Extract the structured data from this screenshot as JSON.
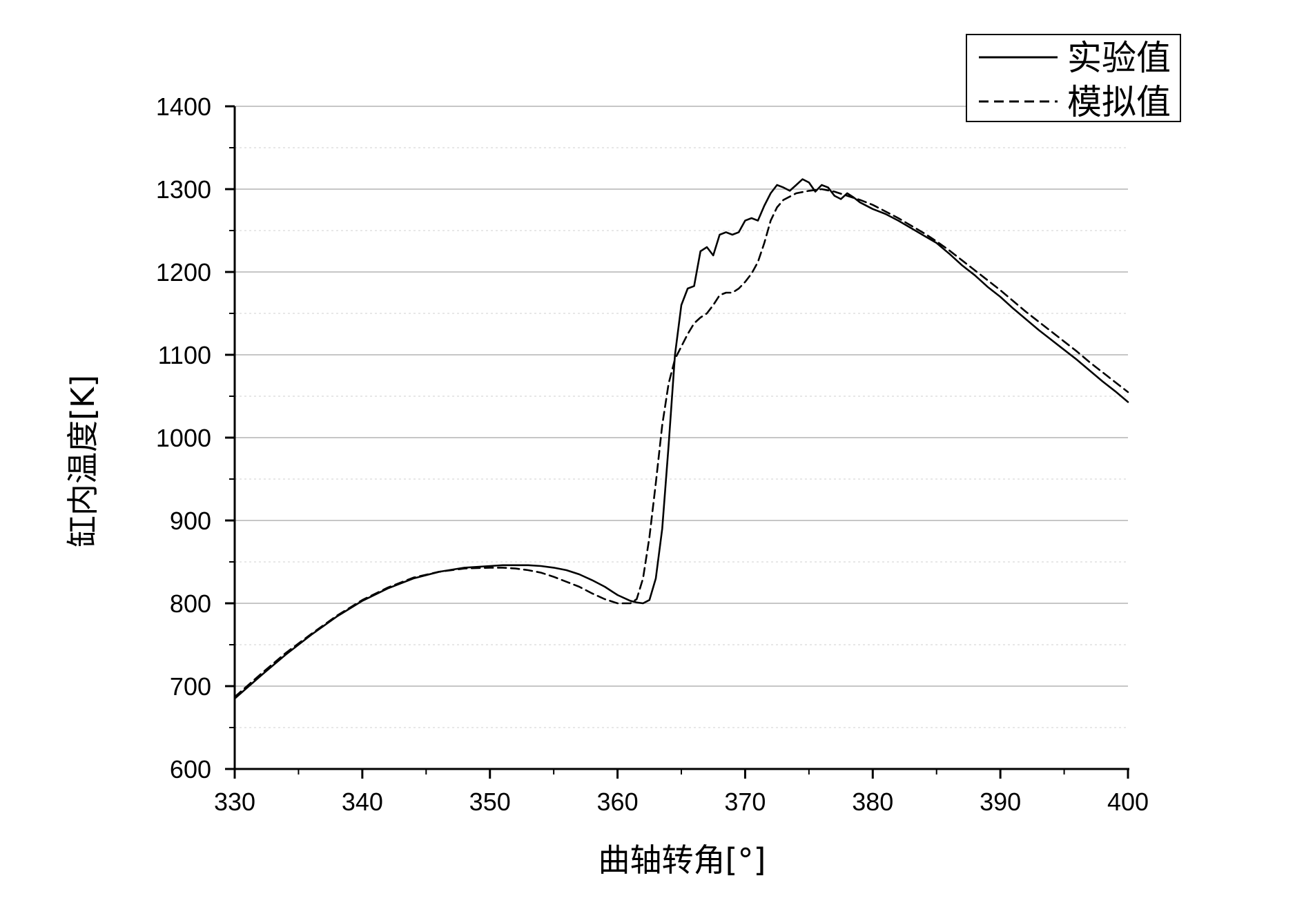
{
  "chart_data": {
    "type": "line",
    "title": "",
    "xlabel": "曲轴转角[°]",
    "ylabel": "缸内温度[K]",
    "xlim": [
      330,
      400
    ],
    "ylim": [
      600,
      1400
    ],
    "xticks": [
      330,
      340,
      350,
      360,
      370,
      380,
      390,
      400
    ],
    "yticks": [
      600,
      700,
      800,
      900,
      1000,
      1100,
      1200,
      1300,
      1400
    ],
    "grid": true,
    "legend": "top-right",
    "series": [
      {
        "name": "实验值",
        "style": "solid",
        "color": "#000000",
        "x": [
          330,
          332,
          334,
          336,
          338,
          340,
          342,
          344,
          346,
          348,
          350,
          351,
          352,
          353,
          354,
          355,
          356,
          357,
          358,
          359,
          360,
          361,
          361.5,
          362,
          362.5,
          363,
          363.5,
          364,
          364.5,
          365,
          365.5,
          366,
          366.5,
          367,
          367.5,
          368,
          368.5,
          369,
          369.5,
          370,
          370.5,
          371,
          371.5,
          372,
          372.5,
          373,
          373.5,
          374,
          374.5,
          375,
          375.5,
          376,
          376.5,
          377,
          377.5,
          378,
          378.5,
          379,
          380,
          381,
          382,
          383,
          384,
          385,
          386,
          387,
          388,
          389,
          390,
          391,
          392,
          393,
          394,
          395,
          396,
          397,
          398,
          399,
          400
        ],
        "y": [
          685,
          712,
          738,
          762,
          784,
          803,
          818,
          830,
          838,
          843,
          845,
          846,
          846,
          846,
          845,
          843,
          840,
          835,
          828,
          820,
          810,
          803,
          801,
          800,
          804,
          830,
          890,
          990,
          1100,
          1160,
          1180,
          1183,
          1225,
          1230,
          1220,
          1245,
          1248,
          1245,
          1248,
          1262,
          1265,
          1262,
          1280,
          1295,
          1305,
          1302,
          1298,
          1305,
          1312,
          1308,
          1297,
          1305,
          1302,
          1292,
          1288,
          1295,
          1290,
          1284,
          1276,
          1270,
          1262,
          1253,
          1244,
          1235,
          1222,
          1208,
          1196,
          1182,
          1170,
          1156,
          1143,
          1130,
          1118,
          1106,
          1094,
          1081,
          1068,
          1056,
          1043
        ]
      },
      {
        "name": "模拟值",
        "style": "dashed",
        "color": "#000000",
        "x": [
          330,
          332,
          334,
          336,
          338,
          340,
          342,
          344,
          346,
          348,
          350,
          351,
          352,
          353,
          354,
          355,
          356,
          357,
          358,
          359,
          360,
          361,
          361.5,
          362,
          362.5,
          363,
          363.5,
          364,
          364.5,
          365,
          365.5,
          366,
          366.5,
          367,
          367.5,
          368,
          368.5,
          369,
          369.5,
          370,
          370.5,
          371,
          371.5,
          372,
          372.5,
          373,
          374,
          375,
          376,
          377,
          378,
          379,
          380,
          381,
          382,
          383,
          384,
          385,
          386,
          387,
          388,
          389,
          390,
          391,
          392,
          393,
          394,
          395,
          396,
          397,
          398,
          399,
          400
        ],
        "y": [
          687,
          714,
          740,
          763,
          785,
          804,
          819,
          831,
          838,
          842,
          843,
          843,
          842,
          840,
          837,
          832,
          826,
          820,
          812,
          805,
          800,
          800,
          805,
          830,
          880,
          945,
          1015,
          1065,
          1095,
          1110,
          1125,
          1138,
          1145,
          1150,
          1160,
          1172,
          1175,
          1175,
          1180,
          1188,
          1198,
          1212,
          1235,
          1262,
          1278,
          1287,
          1295,
          1298,
          1300,
          1297,
          1292,
          1287,
          1281,
          1273,
          1265,
          1256,
          1247,
          1237,
          1226,
          1214,
          1202,
          1190,
          1178,
          1165,
          1152,
          1140,
          1128,
          1116,
          1104,
          1091,
          1079,
          1067,
          1055
        ]
      }
    ]
  }
}
